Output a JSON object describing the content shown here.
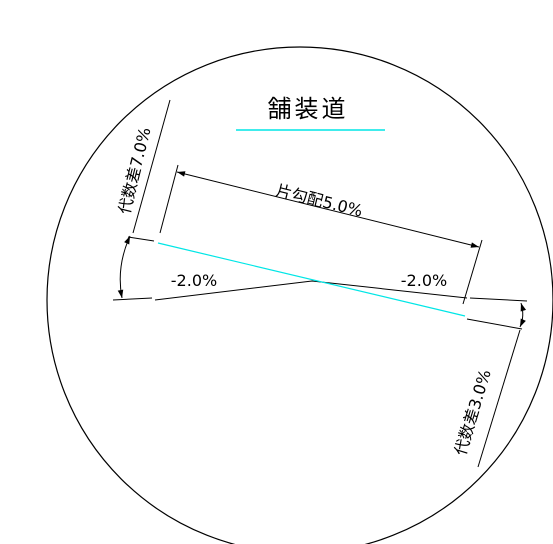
{
  "title": "舗装道",
  "labels": {
    "crossfall_main": "片勾配5.0%",
    "slope_left": "-2.0%",
    "slope_right": "-2.0%",
    "algebraic_diff_left": "代数差7.0%",
    "algebraic_diff_right": "代数差3.0%"
  },
  "colors": {
    "line": "#000000",
    "cross_slope_line": "#00e6e6",
    "title_underline": "#00e6e6"
  }
}
